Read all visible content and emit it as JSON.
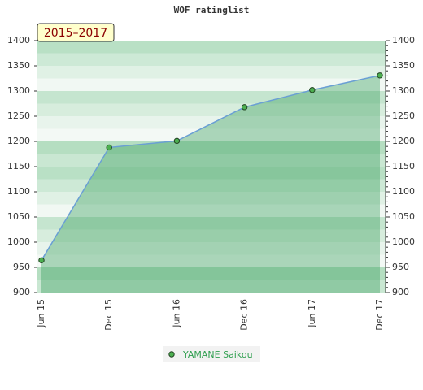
{
  "chart_data": {
    "type": "area",
    "title": "WOF ratinglist",
    "annotation": "2015–2017",
    "categories": [
      "Jun 15",
      "Dec 15",
      "Jun 16",
      "Dec 16",
      "Jun 17",
      "Dec 17"
    ],
    "series": [
      {
        "name": "YAMANE Saikou",
        "color": "#6a9fd4",
        "marker_color": "#4caf50",
        "values": [
          964,
          1188,
          1201,
          1268,
          1302,
          1331
        ]
      }
    ],
    "ylim": [
      900,
      1400
    ],
    "yticks": [
      900,
      950,
      1000,
      1050,
      1100,
      1150,
      1200,
      1250,
      1300,
      1350,
      1400
    ],
    "y2lim": [
      900,
      1400
    ],
    "y2ticks": [
      900,
      950,
      1000,
      1050,
      1100,
      1150,
      1200,
      1250,
      1300,
      1350,
      1400
    ]
  }
}
